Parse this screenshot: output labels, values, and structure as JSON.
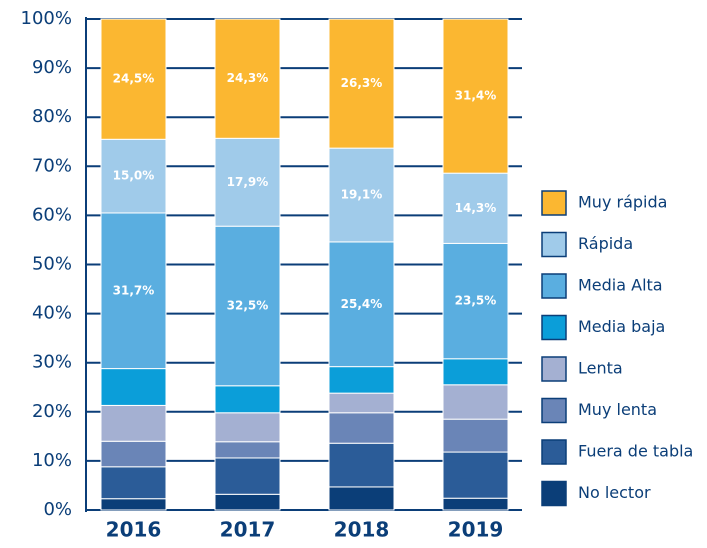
{
  "chart_data": {
    "type": "stacked_bar",
    "categories": [
      "2016",
      "2017",
      "2018",
      "2019"
    ],
    "series": [
      {
        "name": "No lector",
        "color": "#0b3e78",
        "values": [
          2.3,
          3.2,
          4.7,
          2.4
        ]
      },
      {
        "name": "Fuera de tabla",
        "color": "#2b5c98",
        "values": [
          6.5,
          7.4,
          8.9,
          9.4
        ]
      },
      {
        "name": "Muy lenta",
        "color": "#6a85b7",
        "values": [
          5.2,
          3.3,
          6.2,
          6.7
        ]
      },
      {
        "name": "Lenta",
        "color": "#a4b0d2",
        "values": [
          7.3,
          5.9,
          4.0,
          7.0
        ]
      },
      {
        "name": "Media baja",
        "color": "#0b9ed9",
        "values": [
          7.5,
          5.5,
          5.4,
          5.3
        ]
      },
      {
        "name": "Media Alta",
        "color": "#5aaee0",
        "values": [
          31.7,
          32.5,
          25.4,
          23.5
        ],
        "value_labels": [
          "31,7%",
          "32,5%",
          "25,4%",
          "23,5%"
        ]
      },
      {
        "name": "Rápida",
        "color": "#a0cbea",
        "values": [
          15.0,
          17.9,
          19.1,
          14.3
        ],
        "value_labels": [
          "15,0%",
          "17,9%",
          "19,1%",
          "14,3%"
        ]
      },
      {
        "name": "Muy rápida",
        "color": "#fbb731",
        "values": [
          24.5,
          24.3,
          26.3,
          31.4
        ],
        "value_labels": [
          "24,5%",
          "24,3%",
          "26,3%",
          "31,4%"
        ]
      }
    ],
    "ylim": [
      0,
      100
    ],
    "yticks": [
      {
        "value": 0,
        "label": "0%"
      },
      {
        "value": 10,
        "label": "10%"
      },
      {
        "value": 20,
        "label": "20%"
      },
      {
        "value": 30,
        "label": "30%"
      },
      {
        "value": 40,
        "label": "40%"
      },
      {
        "value": 50,
        "label": "50%"
      },
      {
        "value": 60,
        "label": "60%"
      },
      {
        "value": 70,
        "label": "70%"
      },
      {
        "value": 80,
        "label": "80%"
      },
      {
        "value": 90,
        "label": "90%"
      },
      {
        "value": 100,
        "label": "100%"
      }
    ],
    "grid": true,
    "legend": "right"
  }
}
